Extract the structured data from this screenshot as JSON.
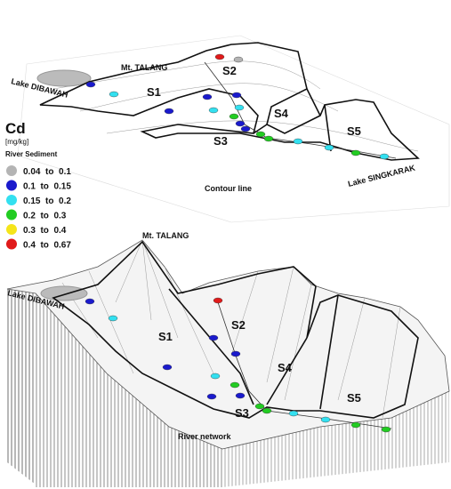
{
  "top_map": {
    "mountain": "Mt. TALANG",
    "subcatchments": [
      "S1",
      "S2",
      "S3",
      "S4",
      "S5"
    ],
    "lake_left": "Lake DIBAWAH",
    "lake_right": "Lake SINGKARAK",
    "caption": "Contour line"
  },
  "legend": {
    "title": "Cd",
    "unit": "[mg/kg]",
    "subtitle": "River Sediment",
    "items": [
      {
        "label": "0.04  to  0.1",
        "color": "#b4b4b4"
      },
      {
        "label": "0.1  to  0.15",
        "color": "#1a1acc"
      },
      {
        "label": "0.15  to  0.2",
        "color": "#33e0f0"
      },
      {
        "label": "0.2  to  0.3",
        "color": "#22cc22"
      },
      {
        "label": "0.3  to  0.4",
        "color": "#f5e51a"
      },
      {
        "label": "0.4  to  0.67",
        "color": "#e01a1a"
      }
    ]
  },
  "bottom_map": {
    "mountain": "Mt. TALANG",
    "subcatchments": [
      "S1",
      "S2",
      "S3",
      "S4",
      "S5"
    ],
    "lake_left": "Lake DIBAWAH",
    "caption": "River network"
  }
}
